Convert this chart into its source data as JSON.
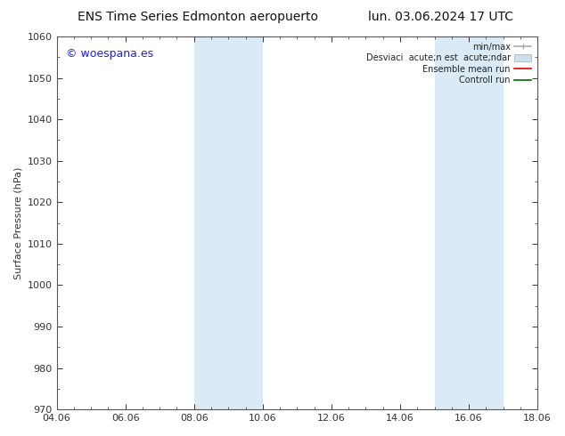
{
  "title_left": "ENS Time Series Edmonton aeropuerto",
  "title_right": "lun. 03.06.2024 17 UTC",
  "ylabel": "Surface Pressure (hPa)",
  "ylim": [
    970,
    1060
  ],
  "yticks": [
    970,
    980,
    990,
    1000,
    1010,
    1020,
    1030,
    1040,
    1050,
    1060
  ],
  "xlim_start": 0,
  "xlim_end": 14,
  "xtick_labels": [
    "04.06",
    "06.06",
    "08.06",
    "10.06",
    "12.06",
    "14.06",
    "16.06",
    "18.06"
  ],
  "xtick_positions": [
    0,
    2,
    4,
    6,
    8,
    10,
    12,
    14
  ],
  "shaded_bands": [
    {
      "x_start": 4,
      "x_end": 6,
      "color": "#daeaf7"
    },
    {
      "x_start": 11,
      "x_end": 13,
      "color": "#daeaf7"
    }
  ],
  "watermark_text": "© woespana.es",
  "watermark_color": "#2222cc",
  "background_color": "#ffffff",
  "spine_color": "#555555",
  "tick_color": "#333333",
  "title_fontsize": 10,
  "label_fontsize": 8,
  "legend_label_color": "#222222"
}
